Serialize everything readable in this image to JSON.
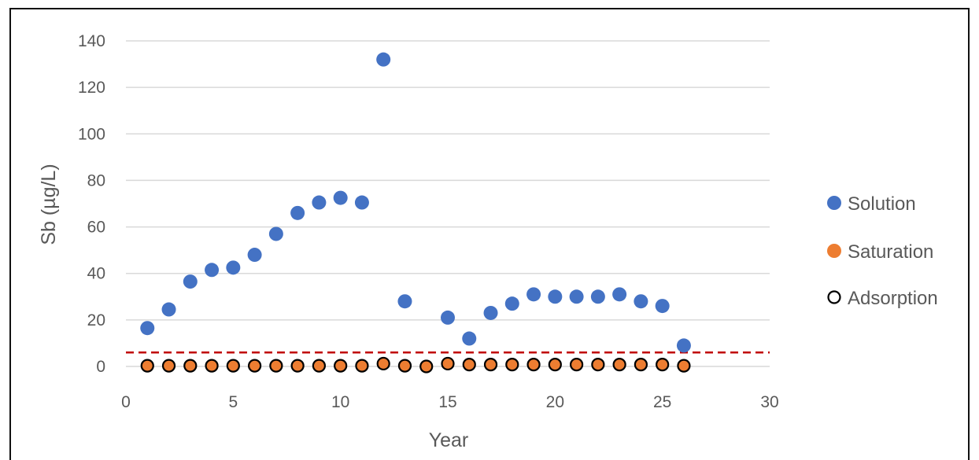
{
  "chart_data": {
    "type": "scatter",
    "title": "",
    "xlabel": "Year",
    "ylabel": "Sb (µg/L)",
    "xlim": [
      0,
      30
    ],
    "ylim": [
      0,
      140
    ],
    "x_ticks": [
      "0",
      "5",
      "10",
      "15",
      "20",
      "25",
      "30"
    ],
    "y_ticks": [
      "0",
      "20",
      "40",
      "60",
      "80",
      "100",
      "120",
      "140"
    ],
    "grid": "horizontal",
    "legend_position": "right",
    "series": [
      {
        "name": "Solution",
        "marker": "filled-circle",
        "color": "#4472C4",
        "x": [
          1,
          2,
          3,
          4,
          5,
          6,
          7,
          8,
          9,
          10,
          11,
          12,
          13,
          15,
          16,
          17,
          18,
          19,
          20,
          21,
          22,
          23,
          24,
          25,
          26
        ],
        "y": [
          16.5,
          24.5,
          36.5,
          41.5,
          42.5,
          48,
          57,
          66,
          70.5,
          72.5,
          70.5,
          132,
          28,
          21,
          12,
          23,
          27,
          31,
          30,
          30,
          30,
          31,
          28,
          26,
          9
        ]
      },
      {
        "name": "Saturation",
        "marker": "filled-circle",
        "color": "#ED7D31",
        "x": [
          1,
          2,
          3,
          4,
          5,
          6,
          7,
          8,
          9,
          10,
          11,
          12,
          13,
          14,
          15,
          16,
          17,
          18,
          19,
          20,
          21,
          22,
          23,
          24,
          25,
          26
        ],
        "y": [
          0.3,
          0.3,
          0.3,
          0.3,
          0.3,
          0.3,
          0.3,
          0.3,
          0.3,
          0.3,
          0.3,
          1.2,
          0.3,
          0,
          1.2,
          0.8,
          0.8,
          0.8,
          0.8,
          0.8,
          0.8,
          0.8,
          0.8,
          0.8,
          0.8,
          0.3
        ]
      },
      {
        "name": "Adsorption",
        "marker": "open-circle",
        "color": "#000000",
        "x": [
          1,
          2,
          3,
          4,
          5,
          6,
          7,
          8,
          9,
          10,
          11,
          12,
          13,
          14,
          15,
          16,
          17,
          18,
          19,
          20,
          21,
          22,
          23,
          24,
          25,
          26
        ],
        "y": [
          0.3,
          0.3,
          0.3,
          0.3,
          0.3,
          0.3,
          0.3,
          0.3,
          0.3,
          0.3,
          0.3,
          1.2,
          0.3,
          0,
          1.2,
          0.8,
          0.8,
          0.8,
          0.8,
          0.8,
          0.8,
          0.8,
          0.8,
          0.8,
          0.8,
          0.3
        ]
      }
    ],
    "reference_line": {
      "y": 6,
      "style": "dashed",
      "color": "#C00000"
    }
  }
}
